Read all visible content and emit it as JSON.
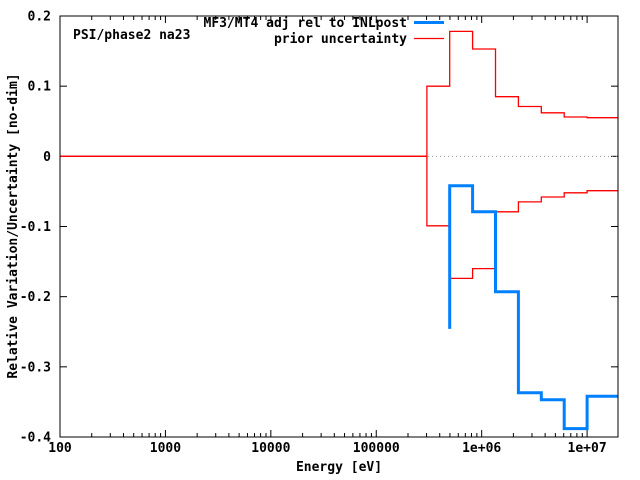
{
  "chart_data": {
    "type": "line",
    "style": "steps",
    "plot_label": "PSI/phase2 na23",
    "xlabel": "Energy [eV]",
    "ylabel": "Relative Variation/Uncertainty [no-dim]",
    "x_scale": "log",
    "xlim": [
      100,
      19640000
    ],
    "ylim": [
      -0.4,
      0.2
    ],
    "grid": "dotted zero line only",
    "legend_position": "top-right-inside",
    "x_ticks": [
      {
        "value": 100,
        "label": "100"
      },
      {
        "value": 1000,
        "label": "1000"
      },
      {
        "value": 10000,
        "label": "10000"
      },
      {
        "value": 100000,
        "label": "100000"
      },
      {
        "value": 1000000,
        "label": "1e+06"
      },
      {
        "value": 10000000,
        "label": "1e+07"
      }
    ],
    "y_ticks": [
      {
        "value": 0.2,
        "label": "0.2"
      },
      {
        "value": 0.1,
        "label": "0.1"
      },
      {
        "value": 0,
        "label": "0"
      },
      {
        "value": -0.1,
        "label": "-0.1"
      },
      {
        "value": -0.2,
        "label": "-0.2"
      },
      {
        "value": -0.3,
        "label": "-0.3"
      },
      {
        "value": -0.4,
        "label": "-0.4"
      }
    ],
    "series": [
      {
        "name": "MF3/MT4 adj rel to INLpost",
        "color": "#0080ff",
        "line_width": 3,
        "edges_eV": [
          497870,
          820850,
          1353400,
          2231300,
          3678800,
          6065300,
          10000000,
          19640000
        ],
        "values": [
          -0.042,
          -0.079,
          -0.193,
          -0.337,
          -0.347,
          -0.388,
          -0.342
        ],
        "start_spike_value": -0.246
      },
      {
        "name": "prior uncertainty",
        "color": "#ff0000",
        "line_width": 1.3,
        "edges_eV": [
          100,
          301970,
          497870,
          820850,
          1353400,
          2231300,
          3678800,
          6065300,
          10000000,
          19640000
        ],
        "upper_values": [
          0.0,
          0.1,
          0.178,
          0.153,
          0.085,
          0.071,
          0.062,
          0.056,
          0.055
        ],
        "lower_values": [
          0.0,
          -0.099,
          -0.174,
          -0.16,
          -0.079,
          -0.065,
          -0.058,
          -0.052,
          -0.049
        ]
      }
    ],
    "colors": {
      "background": "#ffffff",
      "axis": "#000000",
      "zero_line": "#999999",
      "adjustment_blue": "#0080ff",
      "prior_red": "#ff0000"
    }
  }
}
